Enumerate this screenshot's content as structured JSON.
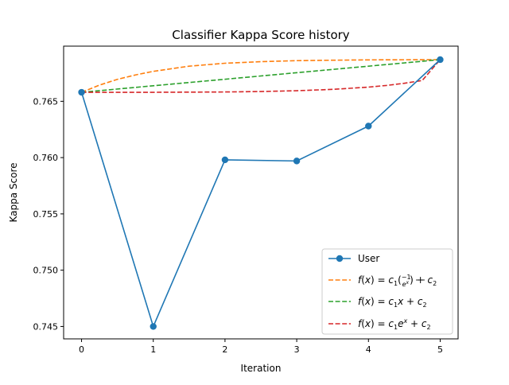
{
  "chart_data": {
    "type": "line",
    "title": "Classifier Kappa Score history",
    "xlabel": "Iteration",
    "ylabel": "Kappa Score",
    "xlim": [
      -0.25,
      5.25
    ],
    "ylim": [
      0.7439,
      0.7699
    ],
    "x_ticks": [
      0,
      1,
      2,
      3,
      4,
      5
    ],
    "x_tick_labels": [
      "0",
      "1",
      "2",
      "3",
      "4",
      "5"
    ],
    "y_ticks": [
      0.745,
      0.75,
      0.755,
      0.76,
      0.765
    ],
    "y_tick_labels": [
      "0.745",
      "0.750",
      "0.755",
      "0.760",
      "0.765"
    ],
    "grid": false,
    "legend_position": "lower-right",
    "series": [
      {
        "name": "User",
        "style": "solid-marker",
        "color": "#1f77b4",
        "x": [
          0,
          1,
          2,
          3,
          4,
          5
        ],
        "y": [
          0.7658,
          0.745,
          0.7598,
          0.7597,
          0.7628,
          0.7687
        ]
      },
      {
        "name": "f(x) = c1(-1/e^x) + c2",
        "style": "dashed",
        "color": "#ff7f0e",
        "x": [
          0,
          0.25,
          0.5,
          0.75,
          1,
          1.5,
          2,
          2.5,
          3,
          3.5,
          4,
          4.5,
          5
        ],
        "y": [
          0.7658,
          0.76644,
          0.76695,
          0.76734,
          0.76766,
          0.76812,
          0.76838,
          0.76852,
          0.76861,
          0.76865,
          0.76868,
          0.76869,
          0.7687
        ]
      },
      {
        "name": "f(x) = c1x + c2",
        "style": "dashed",
        "color": "#2ca02c",
        "x": [
          0,
          5
        ],
        "y": [
          0.7658,
          0.7687
        ]
      },
      {
        "name": "f(x) = c1e^x + c2",
        "style": "dashed",
        "color": "#d62728",
        "x": [
          0,
          1,
          2,
          2.5,
          3,
          3.5,
          4,
          4.25,
          4.5,
          4.75,
          5
        ],
        "y": [
          0.7658,
          0.7658,
          0.76583,
          0.76587,
          0.76594,
          0.76606,
          0.76626,
          0.76641,
          0.7666,
          0.76685,
          0.7687
        ]
      }
    ]
  }
}
